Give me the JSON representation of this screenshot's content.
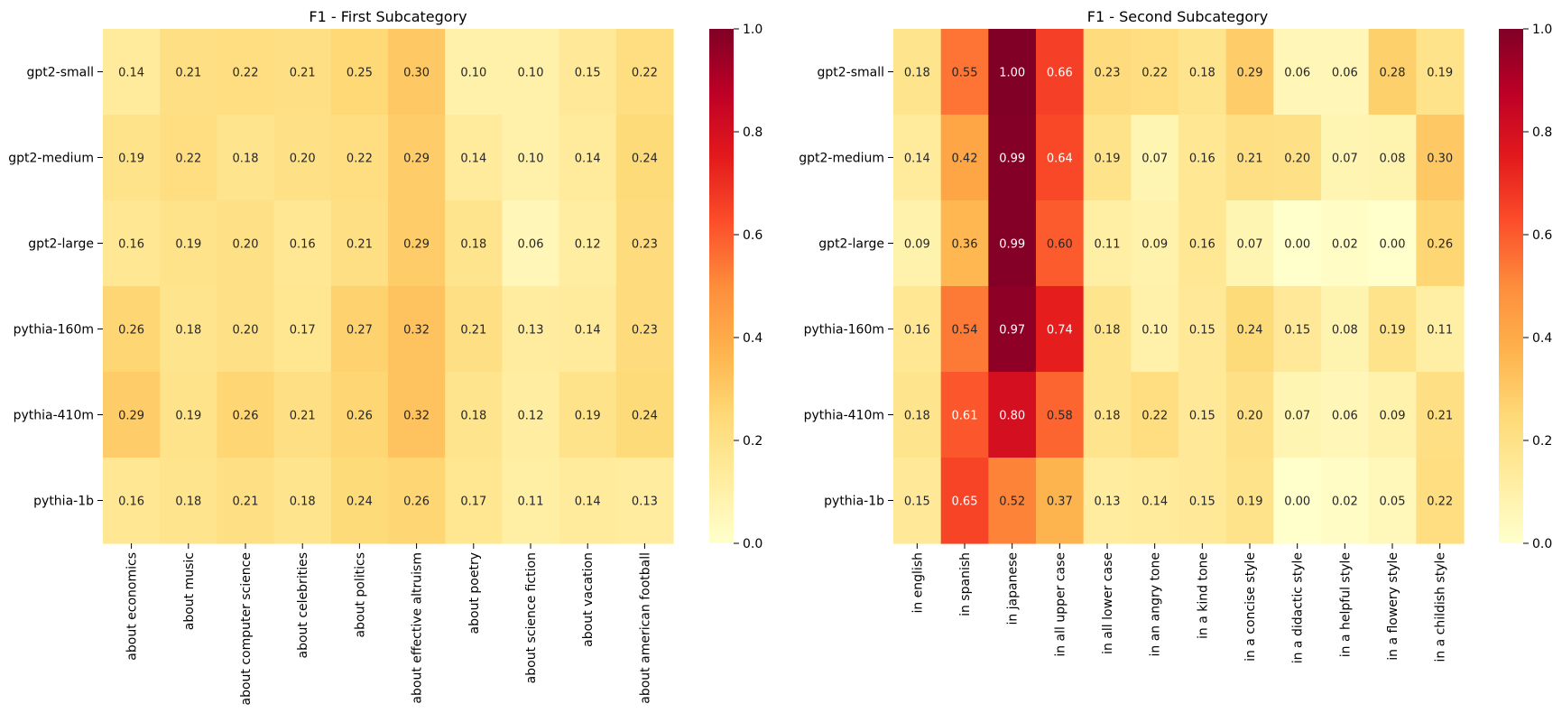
{
  "chart_data": [
    {
      "type": "heatmap",
      "title": "F1 - First Subcategory",
      "xlabel": "",
      "ylabel": "",
      "rows": [
        "gpt2-small",
        "gpt2-medium",
        "gpt2-large",
        "pythia-160m",
        "pythia-410m",
        "pythia-1b"
      ],
      "columns": [
        "about economics",
        "about music",
        "about computer science",
        "about celebrities",
        "about politics",
        "about effective altruism",
        "about poetry",
        "about science fiction",
        "about vacation",
        "about american football"
      ],
      "values": [
        [
          0.14,
          0.21,
          0.22,
          0.21,
          0.25,
          0.3,
          0.1,
          0.1,
          0.15,
          0.22
        ],
        [
          0.19,
          0.22,
          0.18,
          0.2,
          0.22,
          0.29,
          0.14,
          0.1,
          0.14,
          0.24
        ],
        [
          0.16,
          0.19,
          0.2,
          0.16,
          0.21,
          0.29,
          0.18,
          0.06,
          0.12,
          0.23
        ],
        [
          0.26,
          0.18,
          0.2,
          0.17,
          0.27,
          0.32,
          0.21,
          0.13,
          0.14,
          0.23
        ],
        [
          0.29,
          0.19,
          0.26,
          0.21,
          0.26,
          0.32,
          0.18,
          0.12,
          0.19,
          0.24
        ],
        [
          0.16,
          0.18,
          0.21,
          0.18,
          0.24,
          0.26,
          0.17,
          0.11,
          0.14,
          0.13
        ]
      ],
      "colormap": "YlOrRd",
      "vmin": 0,
      "vmax": 1,
      "colorbar_ticks": [
        "0.0",
        "0.2",
        "0.4",
        "0.6",
        "0.8",
        "1.0"
      ]
    },
    {
      "type": "heatmap",
      "title": "F1 - Second Subcategory",
      "xlabel": "",
      "ylabel": "",
      "rows": [
        "gpt2-small",
        "gpt2-medium",
        "gpt2-large",
        "pythia-160m",
        "pythia-410m",
        "pythia-1b"
      ],
      "columns": [
        "in english",
        "in spanish",
        "in japanese",
        "in all upper case",
        "in all lower case",
        "in an angry tone",
        "in a kind tone",
        "in a concise style",
        "in a didactic style",
        "in a helpful style",
        "in a flowery style",
        "in a childish style"
      ],
      "values": [
        [
          0.18,
          0.55,
          1.0,
          0.66,
          0.23,
          0.22,
          0.18,
          0.29,
          0.06,
          0.06,
          0.28,
          0.19
        ],
        [
          0.14,
          0.42,
          0.99,
          0.64,
          0.19,
          0.07,
          0.16,
          0.21,
          0.2,
          0.07,
          0.08,
          0.3
        ],
        [
          0.09,
          0.36,
          0.99,
          0.6,
          0.11,
          0.09,
          0.16,
          0.07,
          0.0,
          0.02,
          0.0,
          0.26
        ],
        [
          0.16,
          0.54,
          0.97,
          0.74,
          0.18,
          0.1,
          0.15,
          0.24,
          0.15,
          0.08,
          0.19,
          0.11
        ],
        [
          0.18,
          0.61,
          0.8,
          0.58,
          0.18,
          0.22,
          0.15,
          0.2,
          0.07,
          0.06,
          0.09,
          0.21
        ],
        [
          0.15,
          0.65,
          0.52,
          0.37,
          0.13,
          0.14,
          0.15,
          0.19,
          0.0,
          0.02,
          0.05,
          0.22
        ]
      ],
      "colormap": "YlOrRd",
      "vmin": 0,
      "vmax": 1,
      "colorbar_ticks": [
        "0.0",
        "0.2",
        "0.4",
        "0.6",
        "0.8",
        "1.0"
      ]
    }
  ]
}
